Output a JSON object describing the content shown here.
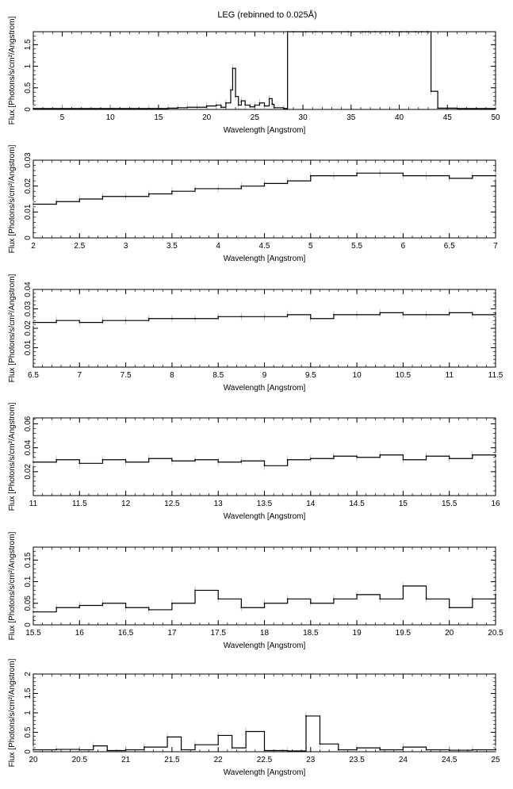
{
  "figure": {
    "title": "LEG (rebinned to 0.025Å)"
  },
  "chart_data": [
    {
      "type": "line",
      "style": "step histogram with grey error bars",
      "xlabel": "Wavelength [Angstrom]",
      "ylabel": "Flux [Photons/s/cm²/Angstrom]",
      "xlim": [
        2,
        50
      ],
      "ylim": [
        0,
        1.8
      ],
      "xticks": [
        5,
        10,
        15,
        20,
        25,
        30,
        35,
        40,
        45,
        50
      ],
      "yticks": [
        0,
        0.5,
        1,
        1.5
      ],
      "ytick_labels": [
        "0",
        "0.5",
        "1",
        "1.5"
      ],
      "series": [
        {
          "x": [
            2,
            5,
            10,
            14,
            16,
            17,
            18,
            19,
            20,
            21,
            21.5,
            22,
            22.5,
            22.7,
            23,
            23.3,
            23.6,
            24,
            24.5,
            25,
            25.5,
            26,
            26.5,
            26.8,
            27,
            28,
            28.4,
            29,
            30.3,
            31.3,
            34.7,
            36.2,
            36.5,
            36.8,
            37.5,
            38.2,
            38.6,
            39.3,
            40.2,
            40.8,
            41.7,
            42.3,
            42.9,
            43.3,
            44,
            46,
            50
          ],
          "y": [
            0.02,
            0.02,
            0.02,
            0.02,
            0.03,
            0.04,
            0.05,
            0.05,
            0.08,
            0.1,
            0.05,
            0.15,
            0.45,
            0.95,
            0.3,
            0.1,
            0.2,
            0.1,
            0.06,
            0.1,
            0.15,
            0.08,
            0.25,
            0.12,
            0.04,
            0.02,
            1.8,
            1.8,
            1.8,
            1.8,
            1.8,
            1.8,
            1.8,
            1.8,
            1.8,
            1.8,
            1.8,
            1.8,
            1.8,
            1.8,
            1.8,
            1.8,
            1.8,
            0.42,
            0.03,
            0.02,
            0.02
          ]
        }
      ]
    },
    {
      "type": "line",
      "style": "step histogram with grey error bars",
      "xlabel": "Wavelength [Angstrom]",
      "ylabel": "Flux [Photons/s/cm²/Angstrom]",
      "xlim": [
        2,
        7
      ],
      "ylim": [
        0,
        0.03
      ],
      "xticks": [
        2,
        2.5,
        3,
        3.5,
        4,
        4.5,
        5,
        5.5,
        6,
        6.5,
        7
      ],
      "yticks": [
        0,
        0.01,
        0.02,
        0.03
      ],
      "ytick_labels": [
        "0",
        "0.01",
        "0.02",
        "0.03"
      ],
      "series": [
        {
          "x": [
            2.0,
            2.25,
            2.5,
            2.75,
            3.0,
            3.25,
            3.5,
            3.75,
            4.0,
            4.25,
            4.5,
            4.75,
            5.0,
            5.25,
            5.5,
            5.75,
            6.0,
            6.25,
            6.5,
            6.75,
            7.0
          ],
          "y": [
            0.013,
            0.014,
            0.015,
            0.016,
            0.016,
            0.017,
            0.018,
            0.019,
            0.019,
            0.02,
            0.021,
            0.022,
            0.024,
            0.024,
            0.025,
            0.025,
            0.024,
            0.024,
            0.023,
            0.024,
            0.024
          ]
        }
      ]
    },
    {
      "type": "line",
      "style": "step histogram with grey error bars",
      "xlabel": "Wavelength [Angstrom]",
      "ylabel": "Flux [Photons/s/cm²/Angstrom]",
      "xlim": [
        6.5,
        11.5
      ],
      "ylim": [
        0,
        0.04
      ],
      "xticks": [
        6.5,
        7,
        7.5,
        8,
        8.5,
        9,
        9.5,
        10,
        10.5,
        11,
        11.5
      ],
      "yticks": [
        0.01,
        0.02,
        0.03,
        0.04
      ],
      "ytick_labels": [
        "0.01",
        "0.02",
        "0.03",
        "0.04"
      ],
      "series": [
        {
          "x": [
            6.5,
            6.75,
            7.0,
            7.25,
            7.5,
            7.75,
            8.0,
            8.25,
            8.5,
            8.75,
            9.0,
            9.25,
            9.5,
            9.75,
            10.0,
            10.25,
            10.5,
            10.75,
            11.0,
            11.25,
            11.5
          ],
          "y": [
            0.023,
            0.024,
            0.023,
            0.024,
            0.024,
            0.025,
            0.025,
            0.025,
            0.026,
            0.026,
            0.026,
            0.027,
            0.025,
            0.027,
            0.027,
            0.028,
            0.027,
            0.027,
            0.028,
            0.027,
            0.028
          ]
        }
      ]
    },
    {
      "type": "line",
      "style": "step histogram with grey error bars",
      "xlabel": "Wavelength [Angstrom]",
      "ylabel": "Flux [Photons/s/cm²/Angstrom]",
      "xlim": [
        11,
        16
      ],
      "ylim": [
        0,
        0.065
      ],
      "xticks": [
        11,
        11.5,
        12,
        12.5,
        13,
        13.5,
        14,
        14.5,
        15,
        15.5,
        16
      ],
      "yticks": [
        0.02,
        0.04,
        0.06
      ],
      "ytick_labels": [
        "0.02",
        "0.04",
        "0.06"
      ],
      "series": [
        {
          "x": [
            11.0,
            11.25,
            11.5,
            11.75,
            12.0,
            12.25,
            12.5,
            12.75,
            13.0,
            13.25,
            13.5,
            13.75,
            14.0,
            14.25,
            14.5,
            14.75,
            15.0,
            15.25,
            15.5,
            15.75,
            16.0
          ],
          "y": [
            0.028,
            0.03,
            0.027,
            0.03,
            0.028,
            0.031,
            0.029,
            0.03,
            0.028,
            0.029,
            0.025,
            0.03,
            0.031,
            0.033,
            0.032,
            0.034,
            0.03,
            0.033,
            0.031,
            0.034,
            0.033
          ]
        }
      ]
    },
    {
      "type": "line",
      "style": "step histogram with grey error bars",
      "xlabel": "Wavelength [Angstrom]",
      "ylabel": "Flux [Photons/s/cm²/Angstrom]",
      "xlim": [
        15.5,
        20.5
      ],
      "ylim": [
        0,
        0.18
      ],
      "xticks": [
        15.5,
        16,
        16.5,
        17,
        17.5,
        18,
        18.5,
        19,
        19.5,
        20,
        20.5
      ],
      "yticks": [
        0,
        0.05,
        0.1,
        0.15
      ],
      "ytick_labels": [
        "0",
        "0.05",
        "0.1",
        "0.15"
      ],
      "series": [
        {
          "x": [
            15.5,
            15.75,
            16.0,
            16.25,
            16.5,
            16.75,
            17.0,
            17.25,
            17.5,
            17.75,
            18.0,
            18.25,
            18.5,
            18.75,
            19.0,
            19.25,
            19.5,
            19.75,
            20.0,
            20.25,
            20.5
          ],
          "y": [
            0.03,
            0.04,
            0.045,
            0.05,
            0.04,
            0.035,
            0.05,
            0.08,
            0.06,
            0.04,
            0.05,
            0.06,
            0.05,
            0.06,
            0.07,
            0.06,
            0.09,
            0.06,
            0.04,
            0.06,
            0.07
          ]
        }
      ]
    },
    {
      "type": "line",
      "style": "step histogram with grey error bars",
      "xlabel": "Wavelength [Angstrom]",
      "ylabel": "Flux [Photons/s/cm²/Angstrom]",
      "xlim": [
        20,
        25
      ],
      "ylim": [
        0,
        2
      ],
      "xticks": [
        20,
        20.5,
        21,
        21.5,
        22,
        22.5,
        23,
        23.5,
        24,
        24.5,
        25
      ],
      "yticks": [
        0,
        0.5,
        1,
        1.5,
        2
      ],
      "ytick_labels": [
        "0",
        "0.5",
        "1",
        "1.5",
        "2"
      ],
      "series": [
        {
          "x": [
            20.0,
            20.25,
            20.5,
            20.65,
            20.8,
            21.0,
            21.2,
            21.45,
            21.6,
            21.75,
            22.0,
            22.15,
            22.3,
            22.5,
            22.75,
            22.95,
            23.1,
            23.3,
            23.5,
            23.75,
            24.0,
            24.25,
            24.5,
            24.75,
            25.0
          ],
          "y": [
            0.05,
            0.06,
            0.05,
            0.15,
            0.03,
            0.05,
            0.12,
            0.38,
            0.05,
            0.18,
            0.42,
            0.1,
            0.52,
            0.03,
            0.02,
            0.92,
            0.2,
            0.05,
            0.1,
            0.05,
            0.12,
            0.05,
            0.04,
            0.05,
            0.06
          ]
        }
      ]
    }
  ]
}
